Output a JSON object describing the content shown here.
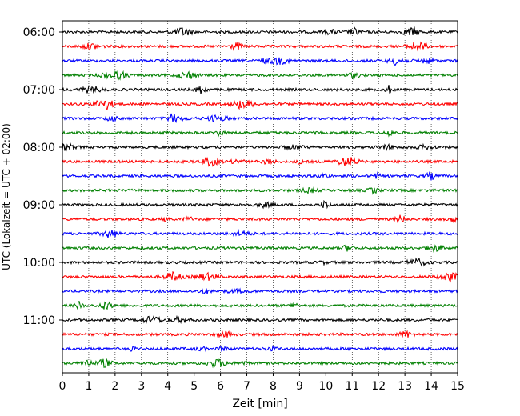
{
  "chart_data": {
    "type": "line",
    "title": "",
    "xlabel": "Zeit  [min]",
    "ylabel": "UTC (Lokalzeit = UTC + 02:00)",
    "xlim": [
      0,
      15
    ],
    "x_ticks": [
      "0",
      "1",
      "2",
      "3",
      "4",
      "5",
      "6",
      "7",
      "8",
      "9",
      "10",
      "11",
      "12",
      "13",
      "14",
      "15"
    ],
    "y_ticks": [
      "06:00",
      "07:00",
      "08:00",
      "09:00",
      "10:00",
      "11:00"
    ],
    "grid": "vertical dotted",
    "trace_colors": [
      "#000000",
      "#ff0000",
      "#0000ff",
      "#008000"
    ],
    "trace_start_times_utc": [
      "06:00",
      "06:15",
      "06:30",
      "06:45",
      "07:00",
      "07:15",
      "07:30",
      "07:45",
      "08:00",
      "08:15",
      "08:30",
      "08:45",
      "09:00",
      "09:15",
      "09:30",
      "09:45",
      "10:00",
      "10:15",
      "10:30",
      "10:45",
      "11:00",
      "11:15",
      "11:30",
      "11:45"
    ],
    "trace_minutes": 15
  }
}
